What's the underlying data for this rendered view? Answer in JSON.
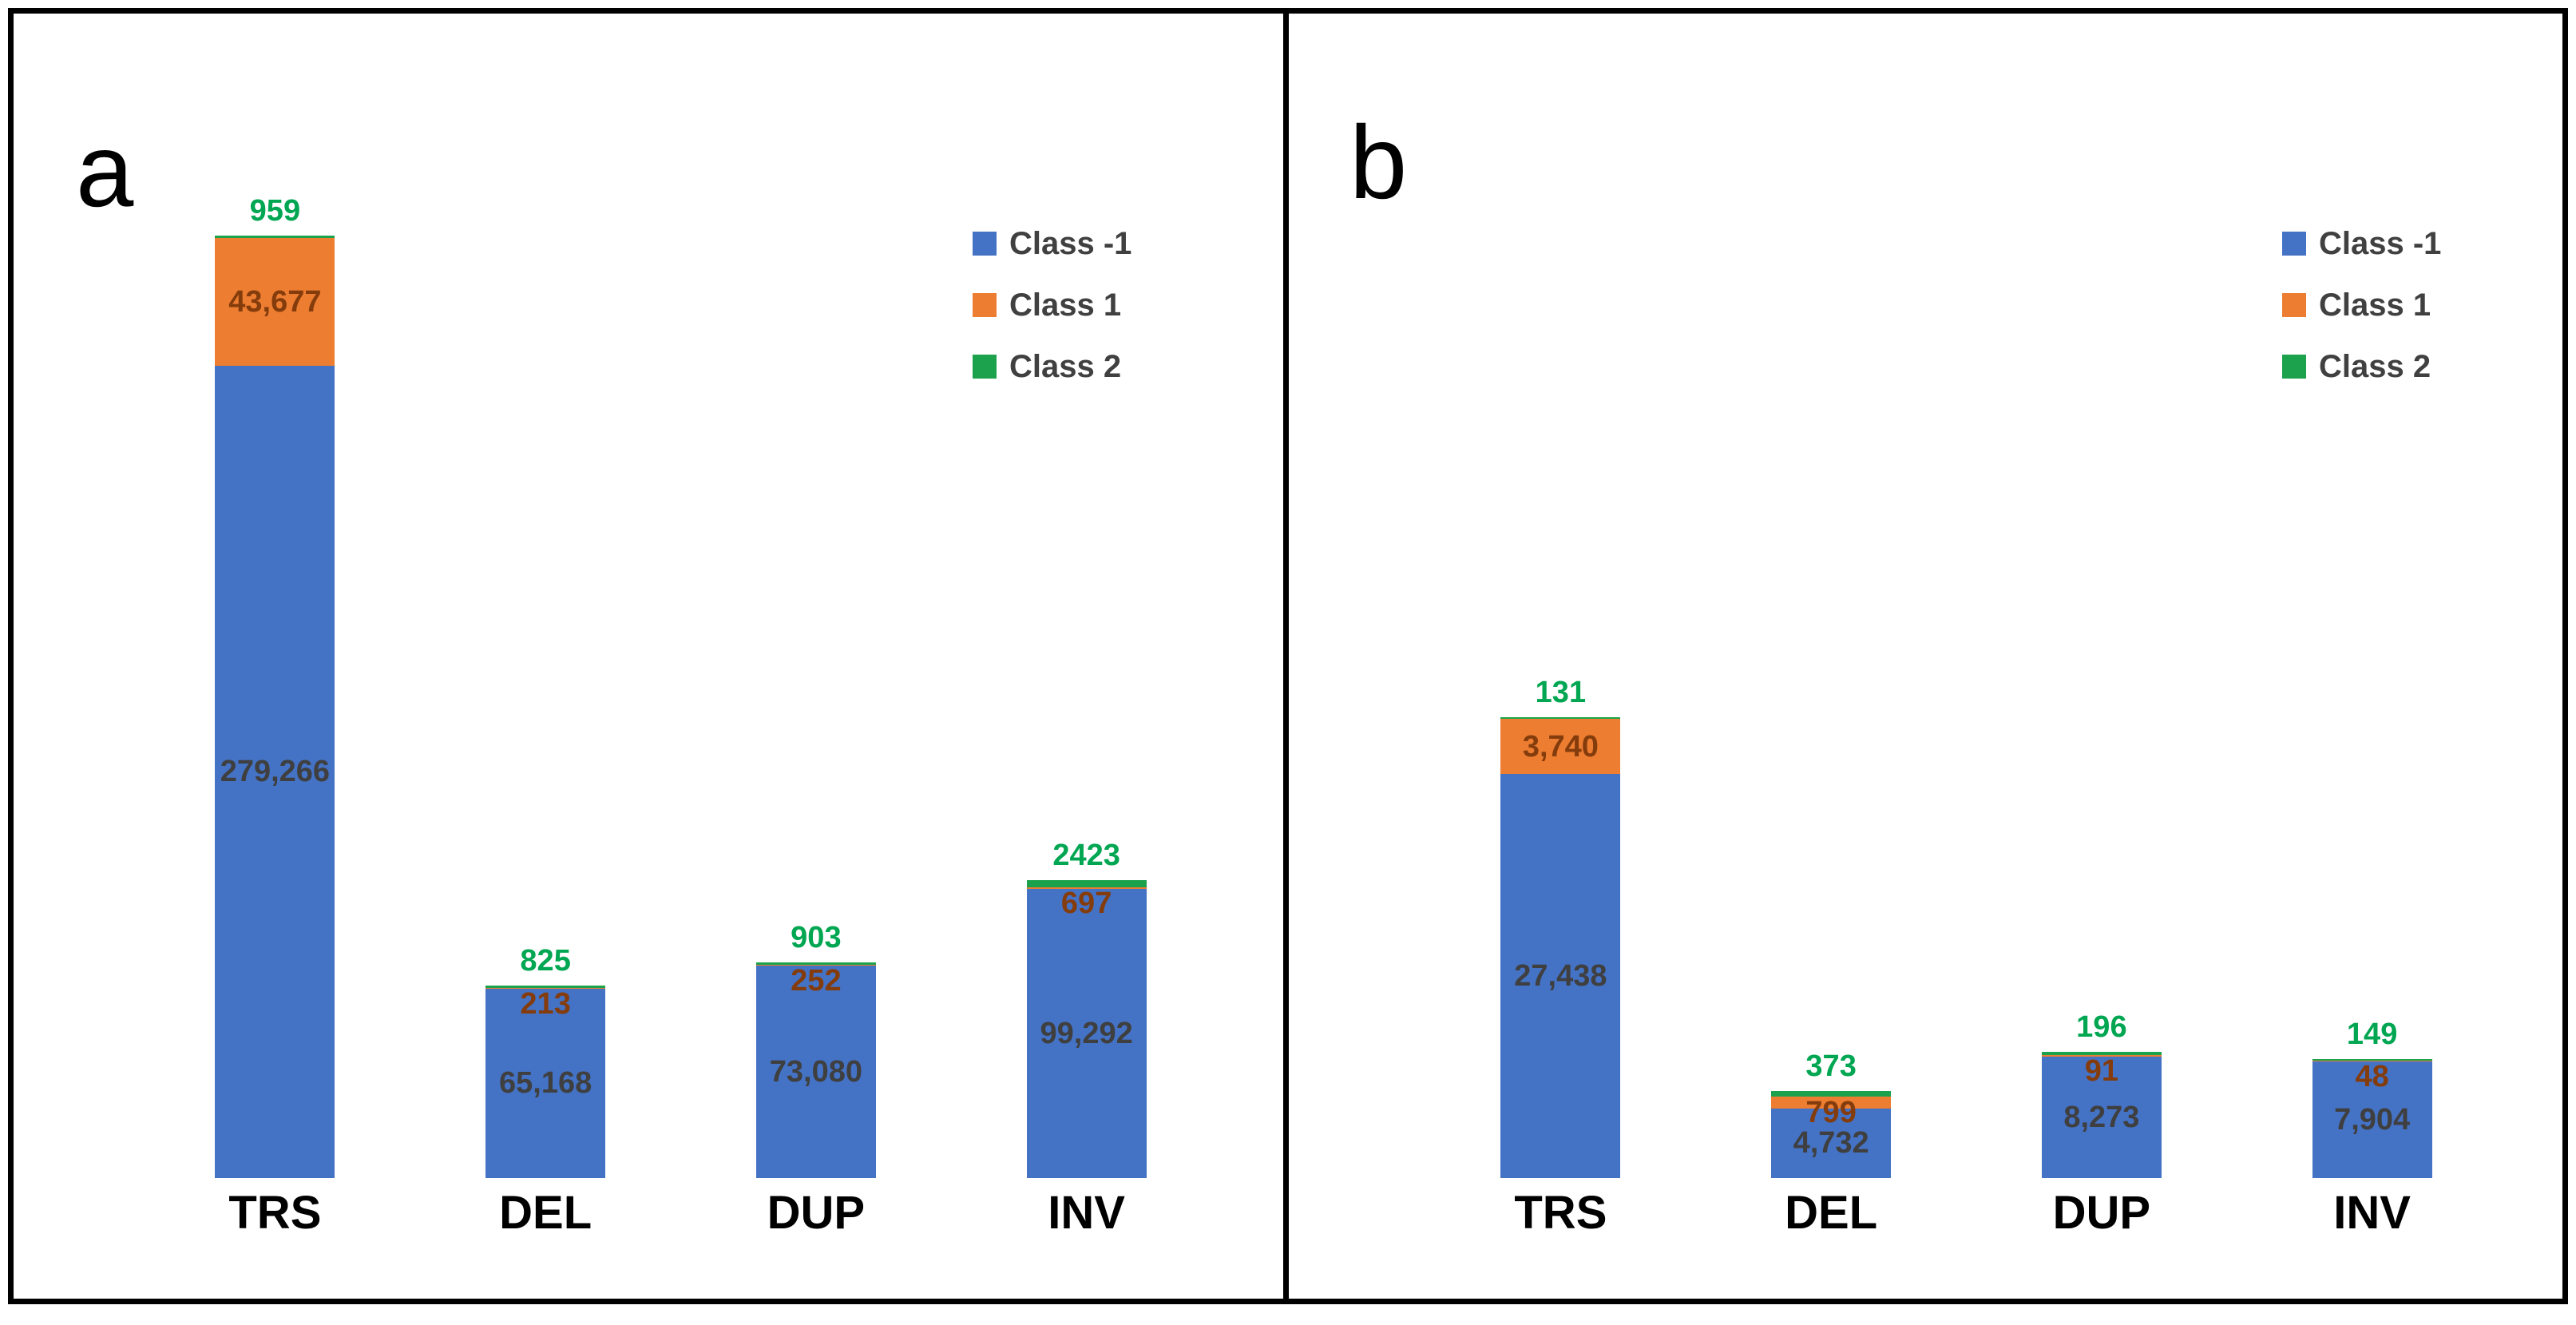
{
  "figure": {
    "background": "#ffffff",
    "border_color": "#000000"
  },
  "colors": {
    "class_minus1_fill": "#4472C4",
    "class1_fill": "#ED7D31",
    "class2_fill": "#1CA24C",
    "class_minus1_label_text": "#3F3F3F",
    "class1_label_text": "#843C0C",
    "class2_label_text": "#00A651",
    "legend_text": "#404040",
    "category_text": "#000000"
  },
  "chart_data": [
    {
      "panel": "a",
      "type": "bar",
      "stacked": true,
      "grid": false,
      "axis_visible": false,
      "legend_position": "top-right",
      "legend_entries": [
        "Class -1",
        "Class 1",
        "Class 2"
      ],
      "categories": [
        "TRS",
        "DEL",
        "DUP",
        "INV"
      ],
      "series": [
        {
          "name": "Class -1",
          "color": "#4472C4",
          "values": [
            279266,
            65168,
            73080,
            99292
          ],
          "labels": [
            "279,266",
            "65,168",
            "73,080",
            "99,292"
          ]
        },
        {
          "name": "Class 1",
          "color": "#ED7D31",
          "values": [
            43677,
            213,
            252,
            697
          ],
          "labels": [
            "43,677",
            "213",
            "252",
            "697"
          ]
        },
        {
          "name": "Class 2",
          "color": "#1CA24C",
          "values": [
            959,
            825,
            903,
            2423
          ],
          "labels": [
            "959",
            "825",
            "903",
            "2423"
          ]
        }
      ]
    },
    {
      "panel": "b",
      "type": "bar",
      "stacked": true,
      "grid": false,
      "axis_visible": false,
      "legend_position": "top-right",
      "legend_entries": [
        "Class -1",
        "Class 1",
        "Class 2"
      ],
      "categories": [
        "TRS",
        "DEL",
        "DUP",
        "INV"
      ],
      "series": [
        {
          "name": "Class -1",
          "color": "#4472C4",
          "values": [
            27438,
            4732,
            8273,
            7904
          ],
          "labels": [
            "27,438",
            "4,732",
            "8,273",
            "7,904"
          ]
        },
        {
          "name": "Class 1",
          "color": "#ED7D31",
          "values": [
            3740,
            799,
            91,
            48
          ],
          "labels": [
            "3,740",
            "799",
            "91",
            "48"
          ]
        },
        {
          "name": "Class 2",
          "color": "#1CA24C",
          "values": [
            131,
            373,
            196,
            149
          ],
          "labels": [
            "131",
            "373",
            "196",
            "149"
          ]
        }
      ]
    }
  ]
}
